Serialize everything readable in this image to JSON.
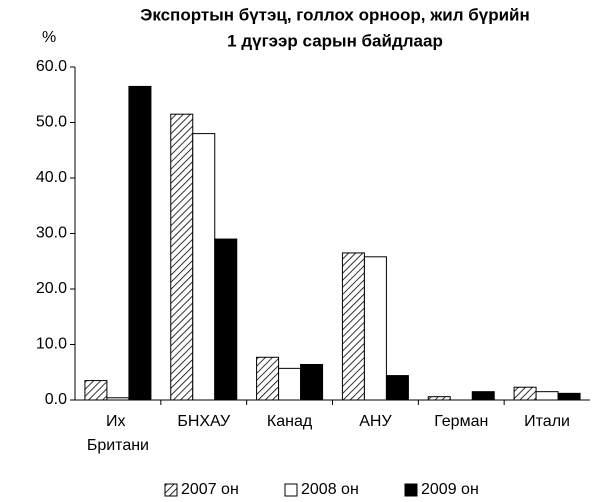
{
  "chart_data": {
    "type": "bar",
    "title": [
      "Экспортын бүтэц, голлох орноор, жил бүрийн",
      "1 дүгээр сарын байдлаар"
    ],
    "y_label": "%",
    "categories": [
      "Их Британи",
      "БНХАУ",
      "Канад",
      "АНУ",
      "Герман",
      "Итали"
    ],
    "series": [
      {
        "name": "2007 он",
        "color": "#000000",
        "pattern": "diagonal-hatch",
        "values": [
          3.5,
          51.5,
          7.7,
          26.5,
          0.6,
          2.3
        ]
      },
      {
        "name": "2008 он",
        "color": "#ffffff",
        "values": [
          0.4,
          48.0,
          5.7,
          25.8,
          0,
          1.5
        ]
      },
      {
        "name": "2009 он",
        "color": "#000000",
        "values": [
          56.5,
          29.0,
          6.4,
          4.4,
          1.5,
          1.2
        ]
      }
    ],
    "ylim": [
      0,
      60
    ],
    "yticks": [
      {
        "value": 0,
        "label": "0.0"
      },
      {
        "value": 10,
        "label": "10.0"
      },
      {
        "value": 20,
        "label": "20.0"
      },
      {
        "value": 30,
        "label": "30.0"
      },
      {
        "value": 40,
        "label": "40.0"
      },
      {
        "value": 50,
        "label": "50.0"
      },
      {
        "value": 60,
        "label": "60.0"
      }
    ],
    "legend": "bottom"
  }
}
